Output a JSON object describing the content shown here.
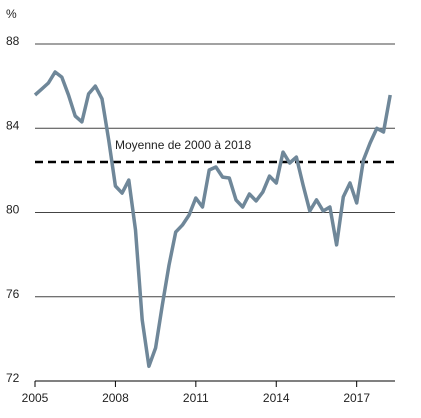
{
  "chart_data": {
    "type": "line",
    "unit_label": "%",
    "x": [
      2005,
      2005.25,
      2005.5,
      2005.75,
      2006,
      2006.25,
      2006.5,
      2006.75,
      2007,
      2007.25,
      2007.5,
      2007.75,
      2008,
      2008.25,
      2008.5,
      2008.75,
      2009,
      2009.25,
      2009.5,
      2009.75,
      2010,
      2010.25,
      2010.5,
      2010.75,
      2011,
      2011.25,
      2011.5,
      2011.75,
      2012,
      2012.25,
      2012.5,
      2012.75,
      2013,
      2013.25,
      2013.5,
      2013.75,
      2014,
      2014.25,
      2014.5,
      2014.75,
      2015,
      2015.25,
      2015.5,
      2015.75,
      2016,
      2016.25,
      2016.5,
      2016.75,
      2017,
      2017.25,
      2017.5,
      2017.75,
      2018,
      2018.25
    ],
    "values": [
      85.58,
      85.86,
      86.15,
      86.67,
      86.43,
      85.58,
      84.58,
      84.3,
      85.63,
      86.0,
      85.4,
      83.44,
      81.26,
      80.92,
      81.54,
      79.17,
      74.9,
      72.7,
      73.57,
      75.6,
      77.5,
      79.07,
      79.4,
      79.88,
      80.69,
      80.26,
      82.02,
      82.16,
      81.68,
      81.64,
      80.6,
      80.26,
      80.88,
      80.55,
      80.97,
      81.73,
      81.4,
      82.87,
      82.35,
      82.63,
      81.3,
      80.07,
      80.6,
      80.07,
      80.26,
      78.46,
      80.74,
      81.4,
      80.45,
      82.49,
      83.3,
      84.0,
      83.82,
      85.58
    ],
    "color": "#6f8799",
    "average": {
      "label": "Moyenne de 2000 à 2018",
      "value": 82.4
    },
    "xlim": [
      2005,
      2018.43
    ],
    "xticks": [
      2005,
      2008,
      2011,
      2014,
      2017
    ],
    "ylim": [
      72,
      88
    ],
    "yticks": [
      72,
      76,
      80,
      84,
      88
    ],
    "grid": true
  }
}
